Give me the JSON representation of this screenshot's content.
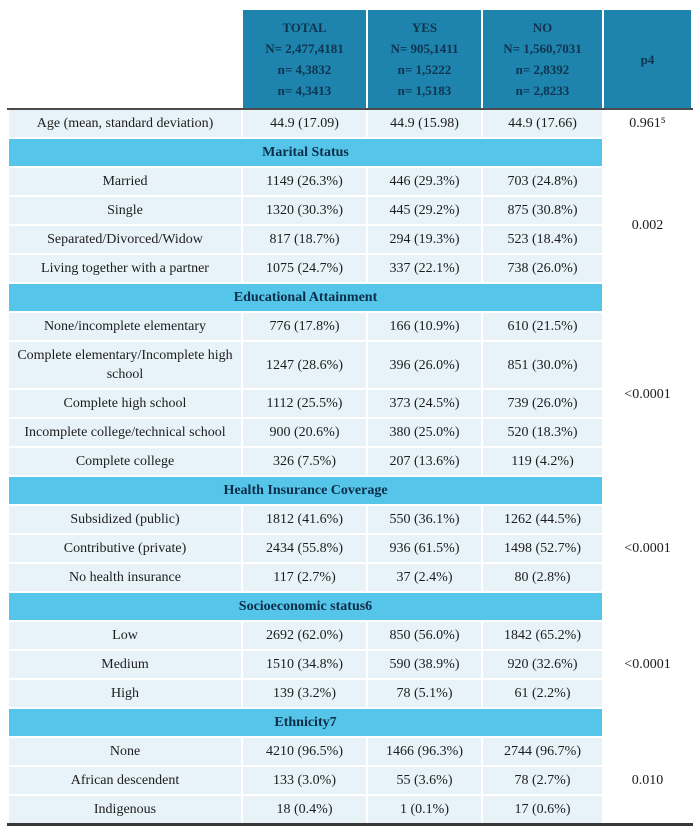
{
  "header": {
    "columns": [
      {
        "l1": "TOTAL",
        "l2": "N= 2,477,4181",
        "l3": "n= 4,3832",
        "l4": "n= 4,3413"
      },
      {
        "l1": "YES",
        "l2": "N= 905,1411",
        "l3": "n= 1,5222",
        "l4": "n= 1,5183"
      },
      {
        "l1": "NO",
        "l2": "N= 1,560,7031",
        "l3": "n= 2,8392",
        "l4": "n= 2,8233"
      }
    ],
    "p_label": "p4"
  },
  "age_row": {
    "label": "Age (mean, standard deviation)",
    "total": "44.9 (17.09)",
    "yes": "44.9 (15.98)",
    "no": "44.9 (17.66)",
    "p": "0.961⁵"
  },
  "sections": [
    {
      "title": "Marital Status",
      "p": "0.002",
      "rows": [
        {
          "label": "Married",
          "total": "1149 (26.3%)",
          "yes": "446 (29.3%)",
          "no": "703 (24.8%)"
        },
        {
          "label": "Single",
          "total": "1320 (30.3%)",
          "yes": "445 (29.2%)",
          "no": "875 (30.8%)"
        },
        {
          "label": "Separated/Divorced/Widow",
          "total": "817 (18.7%)",
          "yes": "294 (19.3%)",
          "no": "523 (18.4%)"
        },
        {
          "label": "Living together with a partner",
          "total": "1075 (24.7%)",
          "yes": "337 (22.1%)",
          "no": "738 (26.0%)"
        }
      ]
    },
    {
      "title": "Educational Attainment",
      "p": "<0.0001",
      "rows": [
        {
          "label": "None/incomplete elementary",
          "total": "776 (17.8%)",
          "yes": "166 (10.9%)",
          "no": "610 (21.5%)"
        },
        {
          "label": "Complete elementary/Incomplete high school",
          "total": "1247 (28.6%)",
          "yes": "396 (26.0%)",
          "no": "851 (30.0%)"
        },
        {
          "label": "Complete high school",
          "total": "1112 (25.5%)",
          "yes": "373 (24.5%)",
          "no": "739 (26.0%)"
        },
        {
          "label": "Incomplete college/technical school",
          "total": "900 (20.6%)",
          "yes": "380 (25.0%)",
          "no": "520 (18.3%)"
        },
        {
          "label": "Complete college",
          "total": "326 (7.5%)",
          "yes": "207 (13.6%)",
          "no": "119 (4.2%)"
        }
      ]
    },
    {
      "title": "Health Insurance Coverage",
      "p": "<0.0001",
      "rows": [
        {
          "label": "Subsidized (public)",
          "total": "1812 (41.6%)",
          "yes": "550 (36.1%)",
          "no": "1262 (44.5%)"
        },
        {
          "label": "Contributive (private)",
          "total": "2434 (55.8%)",
          "yes": "936 (61.5%)",
          "no": "1498 (52.7%)"
        },
        {
          "label": "No health insurance",
          "total": "117 (2.7%)",
          "yes": "37 (2.4%)",
          "no": "80 (2.8%)"
        }
      ]
    },
    {
      "title": "Socioeconomic status6",
      "p": "<0.0001",
      "rows": [
        {
          "label": "Low",
          "total": "2692 (62.0%)",
          "yes": "850 (56.0%)",
          "no": "1842 (65.2%)"
        },
        {
          "label": "Medium",
          "total": "1510 (34.8%)",
          "yes": "590 (38.9%)",
          "no": "920 (32.6%)"
        },
        {
          "label": "High",
          "total": "139 (3.2%)",
          "yes": "78 (5.1%)",
          "no": "61 (2.2%)"
        }
      ]
    },
    {
      "title": "Ethnicity7",
      "p": "0.010",
      "rows": [
        {
          "label": "None",
          "total": "4210 (96.5%)",
          "yes": "1466 (96.3%)",
          "no": "2744 (96.7%)"
        },
        {
          "label": "African descendent",
          "total": "133 (3.0%)",
          "yes": "55 (3.6%)",
          "no": "78 (2.7%)"
        },
        {
          "label": "Indigenous",
          "total": "18 (0.4%)",
          "yes": "1 (0.1%)",
          "no": "17 (0.6%)"
        }
      ]
    }
  ]
}
